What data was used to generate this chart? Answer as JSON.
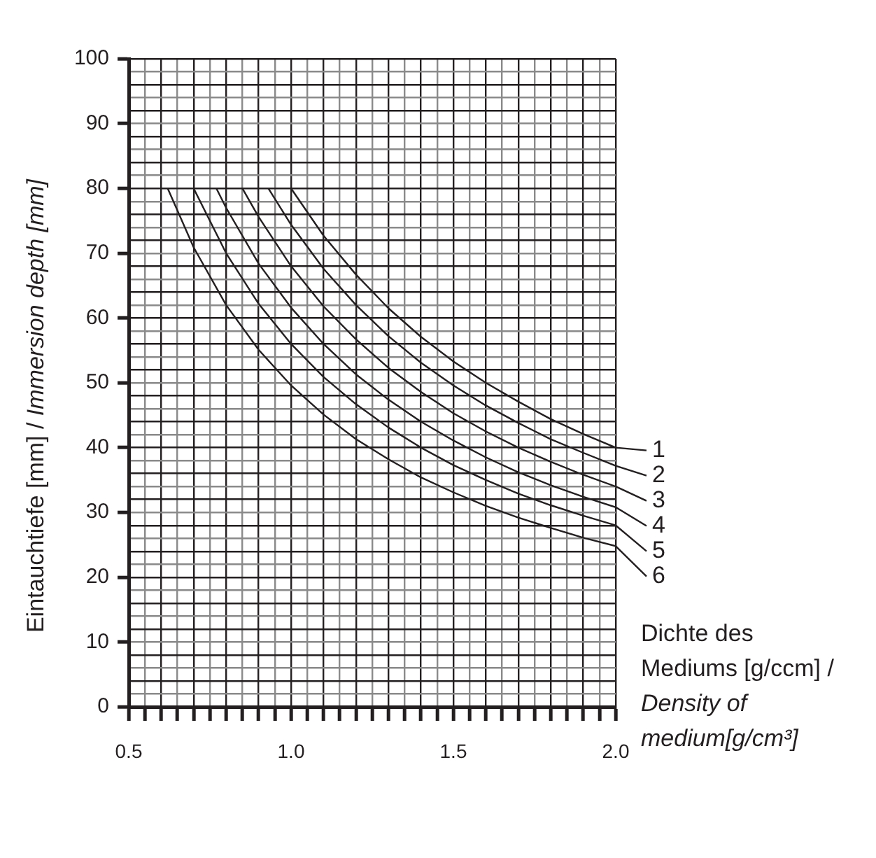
{
  "chart_data": {
    "type": "line",
    "xlabel": "Dichte des Mediums [g/ccm] / Density of medium[g/cm³]",
    "ylabel": "Eintauchtiefe [mm] / Immersion depth [mm]",
    "xlim": [
      0.5,
      2.0
    ],
    "ylim": [
      0,
      100
    ],
    "xticks": [
      0.5,
      {
        "value": 0.55,
        "label": null
      },
      {
        "value": 0.6,
        "label": null
      },
      {
        "value": 0.65,
        "label": null
      },
      {
        "value": 0.7,
        "label": null
      },
      {
        "value": 0.75,
        "label": null
      },
      {
        "value": 0.8,
        "label": null
      },
      {
        "value": 0.85,
        "label": null
      },
      {
        "value": 0.9,
        "label": null
      },
      {
        "value": 0.95,
        "label": null
      },
      {
        "value": 1.0,
        "label": "1.0"
      },
      {
        "value": 1.05,
        "label": null
      },
      {
        "value": 1.1,
        "label": null
      },
      {
        "value": 1.15,
        "label": null
      },
      {
        "value": 1.2,
        "label": null
      },
      {
        "value": 1.25,
        "label": null
      },
      {
        "value": 1.3,
        "label": null
      },
      {
        "value": 1.35,
        "label": null
      },
      {
        "value": 1.4,
        "label": null
      },
      {
        "value": 1.45,
        "label": null
      },
      1.5,
      {
        "value": 1.55,
        "label": null
      },
      {
        "value": 1.6,
        "label": null
      },
      {
        "value": 1.65,
        "label": null
      },
      {
        "value": 1.7,
        "label": null
      },
      {
        "value": 1.75,
        "label": null
      },
      {
        "value": 1.8,
        "label": null
      },
      {
        "value": 1.85,
        "label": null
      },
      {
        "value": 1.9,
        "label": null
      },
      {
        "value": 1.95,
        "label": null
      },
      {
        "value": 2.0,
        "label": "2.0"
      }
    ],
    "yticks": [
      0,
      {
        "value": 2,
        "label": null
      },
      {
        "value": 4,
        "label": null
      },
      {
        "value": 6,
        "label": null
      },
      {
        "value": 8,
        "label": null
      },
      10,
      {
        "value": 12,
        "label": null
      },
      {
        "value": 14,
        "label": null
      },
      {
        "value": 16,
        "label": null
      },
      {
        "value": 18,
        "label": null
      },
      20,
      {
        "value": 22,
        "label": null
      },
      {
        "value": 24,
        "label": null
      },
      {
        "value": 26,
        "label": null
      },
      {
        "value": 28,
        "label": null
      },
      30,
      {
        "value": 32,
        "label": null
      },
      {
        "value": 34,
        "label": null
      },
      {
        "value": 36,
        "label": null
      },
      {
        "value": 38,
        "label": null
      },
      40,
      {
        "value": 42,
        "label": null
      },
      {
        "value": 44,
        "label": null
      },
      {
        "value": 46,
        "label": null
      },
      {
        "value": 48,
        "label": null
      },
      50,
      {
        "value": 52,
        "label": null
      },
      {
        "value": 54,
        "label": null
      },
      {
        "value": 56,
        "label": null
      },
      {
        "value": 58,
        "label": null
      },
      60,
      {
        "value": 62,
        "label": null
      },
      {
        "value": 64,
        "label": null
      },
      {
        "value": 66,
        "label": null
      },
      {
        "value": 68,
        "label": null
      },
      70,
      {
        "value": 72,
        "label": null
      },
      {
        "value": 74,
        "label": null
      },
      {
        "value": 76,
        "label": null
      },
      {
        "value": 78,
        "label": null
      },
      80,
      {
        "value": 82,
        "label": null
      },
      {
        "value": 84,
        "label": null
      },
      {
        "value": 86,
        "label": null
      },
      {
        "value": 88,
        "label": null
      },
      90,
      {
        "value": 92,
        "label": null
      },
      {
        "value": 94,
        "label": null
      },
      {
        "value": 96,
        "label": null
      },
      {
        "value": 98,
        "label": null
      },
      100
    ],
    "grid": true,
    "legend": "right",
    "marker": "none",
    "line_style": "solid",
    "series": [
      {
        "name": "1",
        "color": "#231f20",
        "x": [
          1.0,
          1.1,
          1.2,
          1.3,
          1.4,
          1.5,
          1.6,
          1.7,
          1.8,
          1.9,
          2.0
        ],
        "values": [
          80,
          72.7,
          66.7,
          61.5,
          57.1,
          53.3,
          50,
          47.1,
          44.4,
          42.1,
          40
        ]
      },
      {
        "name": "2",
        "color": "#231f20",
        "x": [
          0.93,
          1.0,
          1.1,
          1.2,
          1.3,
          1.4,
          1.5,
          1.6,
          1.7,
          1.8,
          1.9,
          2.0
        ],
        "values": [
          80,
          74.4,
          67.6,
          62,
          57.2,
          53.1,
          49.6,
          46.5,
          43.8,
          41.3,
          39.2,
          37.2
        ]
      },
      {
        "name": "3",
        "color": "#231f20",
        "x": [
          0.85,
          0.9,
          1.0,
          1.1,
          1.2,
          1.3,
          1.4,
          1.5,
          1.6,
          1.7,
          1.8,
          1.9,
          2.0
        ],
        "values": [
          80,
          75.6,
          68,
          61.8,
          56.7,
          52.3,
          48.6,
          45.3,
          42.5,
          40,
          37.8,
          35.8,
          34
        ]
      },
      {
        "name": "4",
        "color": "#231f20",
        "x": [
          0.77,
          0.8,
          0.9,
          1.0,
          1.1,
          1.2,
          1.3,
          1.4,
          1.5,
          1.6,
          1.7,
          1.8,
          1.9,
          2.0
        ],
        "values": [
          80,
          77,
          68.4,
          61.6,
          56,
          51.3,
          47.4,
          44,
          41.1,
          38.5,
          36.2,
          34.2,
          32.4,
          30.8
        ]
      },
      {
        "name": "5",
        "color": "#231f20",
        "x": [
          0.7,
          0.8,
          0.9,
          1.0,
          1.1,
          1.2,
          1.3,
          1.4,
          1.5,
          1.6,
          1.7,
          1.8,
          1.9,
          2.0
        ],
        "values": [
          80,
          70,
          62.2,
          56,
          50.9,
          46.7,
          43.1,
          40,
          37.3,
          35,
          32.9,
          31.1,
          29.5,
          28
        ]
      },
      {
        "name": "6",
        "color": "#231f20",
        "x": [
          0.62,
          0.7,
          0.8,
          0.9,
          1.0,
          1.1,
          1.2,
          1.3,
          1.4,
          1.5,
          1.6,
          1.7,
          1.8,
          1.9,
          2.0
        ],
        "values": [
          80,
          70.9,
          62,
          55.1,
          49.6,
          45.1,
          41.3,
          38.2,
          35.4,
          33.1,
          31,
          29.2,
          27.6,
          26.1,
          24.8
        ]
      }
    ]
  }
}
